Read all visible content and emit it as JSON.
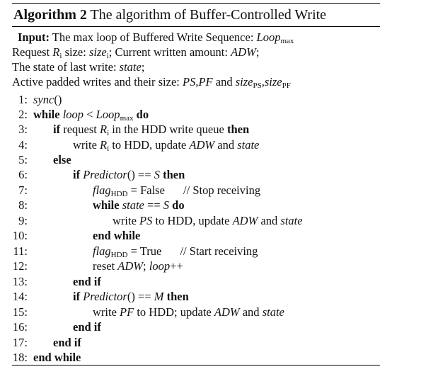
{
  "algorithm": {
    "label": "Algorithm 2",
    "title": "The algorithm of Buffer-Controlled Write"
  },
  "input": {
    "keyword": "Input:",
    "line1_text": "The max loop of Buffered Write Sequence:",
    "line1_var": "Loop",
    "line1_sub": "max",
    "line2_a": "Request",
    "line2_var1": "R",
    "line2_sub1": "i",
    "line2_b": "size:",
    "line2_var2": "size",
    "line2_sub2": "i",
    "line2_c": "; Current written amount:",
    "line2_var3": "ADW",
    "line2_d": ";",
    "line3_a": "The state of last write:",
    "line3_var": "state",
    "line3_b": ";",
    "line4_a": "Active padded writes and their size:",
    "line4_var1": "PS",
    "line4_comma": ",",
    "line4_var2": "PF",
    "line4_b": "and",
    "line4_var3": "size",
    "line4_sub3": "PS",
    "line4_comma2": ",",
    "line4_var4": "size",
    "line4_sub4": "PF"
  },
  "lines": [
    {
      "num": "1:"
    },
    {
      "num": "2:"
    },
    {
      "num": "3:"
    },
    {
      "num": "4:"
    },
    {
      "num": "5:"
    },
    {
      "num": "6:"
    },
    {
      "num": "7:"
    },
    {
      "num": "8:"
    },
    {
      "num": "9:"
    },
    {
      "num": "10:"
    },
    {
      "num": "11:"
    },
    {
      "num": "12:"
    },
    {
      "num": "13:"
    },
    {
      "num": "14:"
    },
    {
      "num": "15:"
    },
    {
      "num": "16:"
    },
    {
      "num": "17:"
    },
    {
      "num": "18:"
    }
  ],
  "code": {
    "l1": {
      "fn": "sync",
      "paren": "()"
    },
    "l2": {
      "kw1": "while",
      "var1": "loop",
      "op": "<",
      "var2": "Loop",
      "sub": "max",
      "kw2": "do"
    },
    "l3": {
      "kw1": "if",
      "a": "request",
      "var": "R",
      "sub": "i",
      "b": "in the HDD write queue",
      "kw2": "then"
    },
    "l4": {
      "a": "write",
      "var1": "R",
      "sub": "i",
      "b": "to HDD, update",
      "var2": "ADW",
      "c": "and",
      "var3": "state"
    },
    "l5": {
      "kw": "else"
    },
    "l6": {
      "kw1": "if",
      "fn": "Predictor",
      "b": "() ==",
      "var": "S",
      "kw2": "then"
    },
    "l7": {
      "var": "flag",
      "sub": "HDD",
      "b": "= False",
      "comment": "// Stop receiving"
    },
    "l8": {
      "kw1": "while",
      "var1": "state",
      "op": "==",
      "var2": "S",
      "kw2": "do"
    },
    "l9": {
      "a": "write",
      "var1": "PS",
      "b": "to HDD, update",
      "var2": "ADW",
      "c": "and",
      "var3": "state"
    },
    "l10": {
      "kw": "end while"
    },
    "l11": {
      "var": "flag",
      "sub": "HDD",
      "b": "= True",
      "comment": "// Start receiving"
    },
    "l12": {
      "a": "reset",
      "var1": "ADW",
      "b": ";",
      "var2": "loop",
      "c": "++"
    },
    "l13": {
      "kw": "end if"
    },
    "l14": {
      "kw1": "if",
      "fn": "Predictor",
      "b": "() ==",
      "var": "M",
      "kw2": "then"
    },
    "l15": {
      "a": "write",
      "var1": "PF",
      "b": "to HDD; update",
      "var2": "ADW",
      "c": "and",
      "var3": "state"
    },
    "l16": {
      "kw": "end if"
    },
    "l17": {
      "kw": "end if"
    },
    "l18": {
      "kw": "end while"
    }
  }
}
